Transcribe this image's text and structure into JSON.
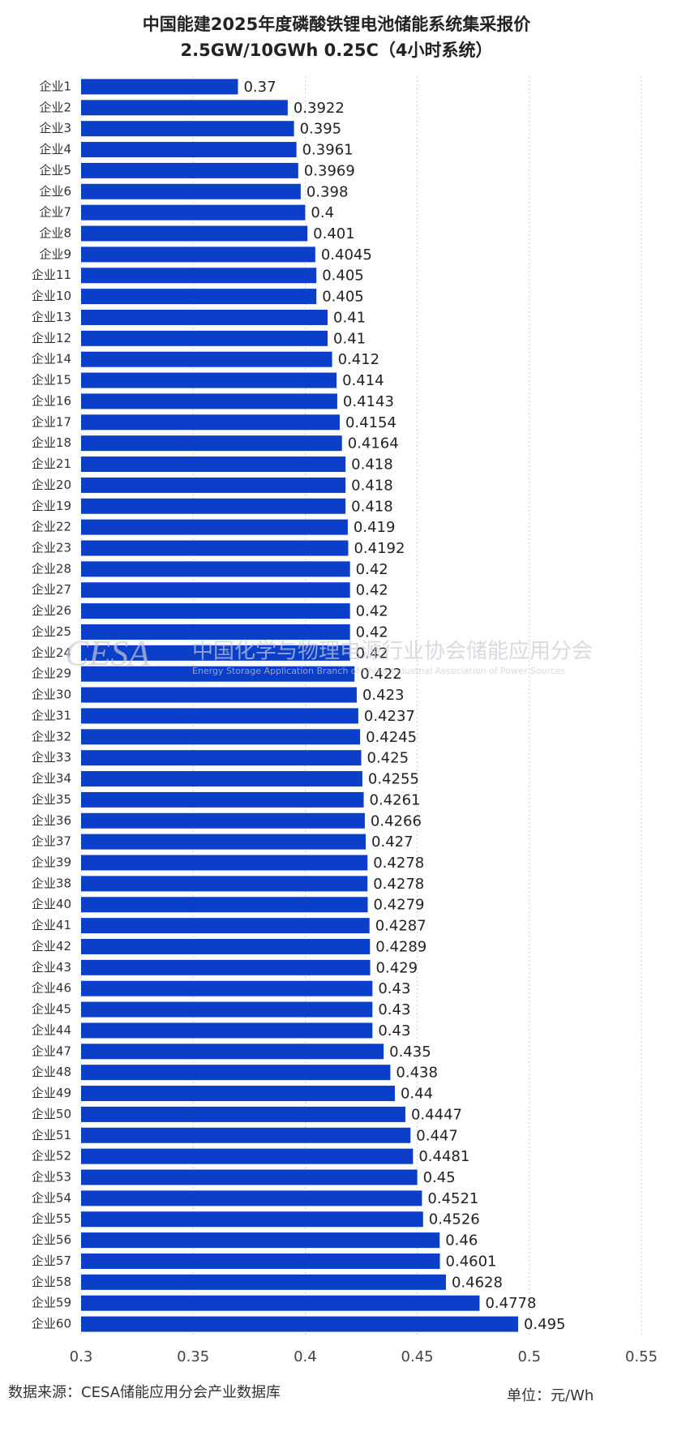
{
  "chart_data": {
    "type": "barh",
    "title": "中国能建2025年度磷酸铁锂电池储能系统集采报价",
    "subtitle": "2.5GW/10GWh 0.25C（4小时系统）",
    "categories": [
      "企业1",
      "企业2",
      "企业3",
      "企业4",
      "企业5",
      "企业6",
      "企业7",
      "企业8",
      "企业9",
      "企业11",
      "企业10",
      "企业13",
      "企业12",
      "企业14",
      "企业15",
      "企业16",
      "企业17",
      "企业18",
      "企业21",
      "企业20",
      "企业19",
      "企业22",
      "企业23",
      "企业28",
      "企业27",
      "企业26",
      "企业25",
      "企业24",
      "企业29",
      "企业30",
      "企业31",
      "企业32",
      "企业33",
      "企业34",
      "企业35",
      "企业36",
      "企业37",
      "企业39",
      "企业38",
      "企业40",
      "企业41",
      "企业42",
      "企业43",
      "企业46",
      "企业45",
      "企业44",
      "企业47",
      "企业48",
      "企业49",
      "企业50",
      "企业51",
      "企业52",
      "企业53",
      "企业54",
      "企业55",
      "企业56",
      "企业57",
      "企业58",
      "企业59",
      "企业60"
    ],
    "values": [
      0.37,
      0.3922,
      0.395,
      0.3961,
      0.3969,
      0.398,
      0.4,
      0.401,
      0.4045,
      0.405,
      0.405,
      0.41,
      0.41,
      0.412,
      0.414,
      0.4143,
      0.4154,
      0.4164,
      0.418,
      0.418,
      0.418,
      0.419,
      0.4192,
      0.42,
      0.42,
      0.42,
      0.42,
      0.42,
      0.422,
      0.423,
      0.4237,
      0.4245,
      0.425,
      0.4255,
      0.4261,
      0.4266,
      0.427,
      0.4278,
      0.4278,
      0.4279,
      0.4287,
      0.4289,
      0.429,
      0.43,
      0.43,
      0.43,
      0.435,
      0.438,
      0.44,
      0.4447,
      0.447,
      0.4481,
      0.45,
      0.4521,
      0.4526,
      0.46,
      0.4601,
      0.4628,
      0.4778,
      0.495
    ],
    "color": "#0b3fc9",
    "xlim": [
      0.3,
      0.55
    ],
    "xticks": [
      0.3,
      0.35,
      0.4,
      0.45,
      0.5,
      0.55
    ],
    "grid": true,
    "watermark": {
      "logo": "CESA",
      "name": "中国化学与物理电源行业协会储能应用分会",
      "english": "Energy Storage Application Branch of China Industrial Association of Power Sources"
    },
    "source": "数据来源：CESA储能应用分会产业数据库",
    "unit": "单位：元/Wh"
  }
}
